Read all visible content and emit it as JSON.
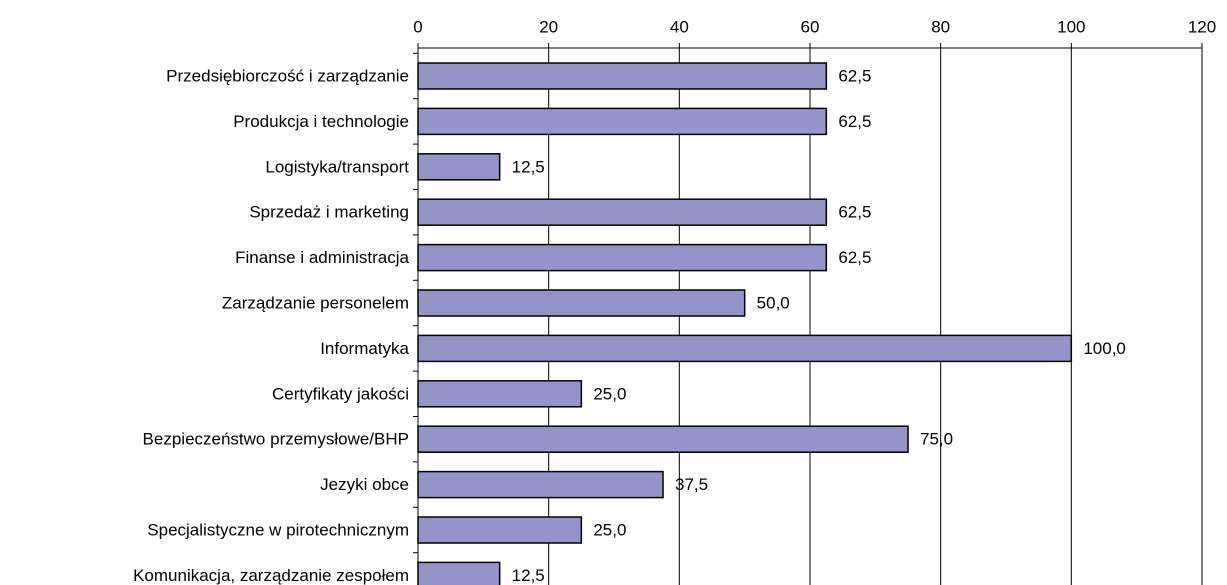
{
  "chart_data": {
    "type": "barh",
    "categories": [
      "Przedsiębiorczość i zarządzanie",
      "Produkcja i technologie",
      "Logistyka/transport",
      "Sprzedaż i marketing",
      "Finanse i administracja",
      "Zarządzanie personelem",
      "Informatyka",
      "Certyfikaty jakości",
      "Bezpieczeństwo przemysłowe/BHP",
      "Jezyki obce",
      "Specjalistyczne w pirotechnicznym",
      "Komunikacja, zarządzanie zespołem"
    ],
    "values": [
      62.5,
      62.5,
      12.5,
      62.5,
      62.5,
      50.0,
      100.0,
      25.0,
      75.0,
      37.5,
      25.0,
      12.5
    ],
    "value_labels": [
      "62,5",
      "62,5",
      "12,5",
      "62,5",
      "62,5",
      "50,0",
      "100,0",
      "25,0",
      "75,0",
      "37,5",
      "25,0",
      "12,5"
    ],
    "color": "#9494c8",
    "xlim": [
      0,
      120
    ],
    "xticks": [
      0,
      20,
      40,
      60,
      80,
      100,
      120
    ],
    "grid": true
  }
}
